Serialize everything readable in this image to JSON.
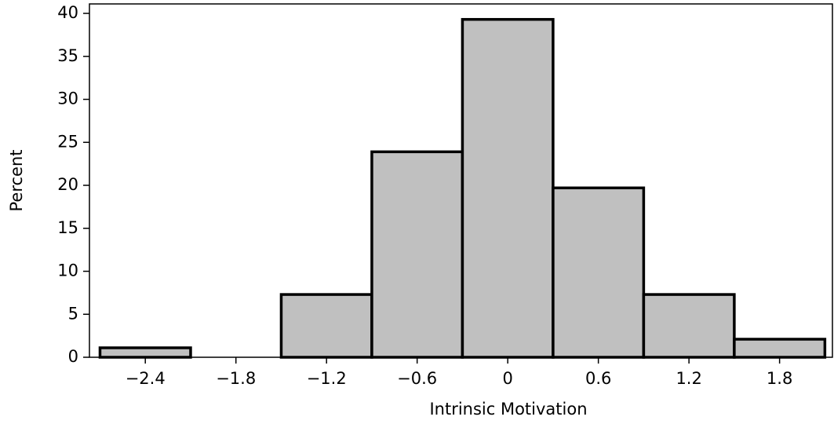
{
  "chart_data": {
    "type": "histogram",
    "x_label": "Intrinsic Motivation",
    "y_label": "Percent",
    "bins": [
      -2.7,
      -2.1,
      -1.5,
      -0.9,
      -0.3,
      0.3,
      0.9,
      1.5,
      2.1
    ],
    "values": [
      1.1,
      0,
      7.3,
      23.9,
      39.3,
      19.7,
      7.3,
      2.1
    ],
    "color": "#c0c0c0",
    "xlim": [
      -2.77,
      2.15
    ],
    "xticks": [
      {
        "value": -2.4,
        "label": "−2.4"
      },
      {
        "value": -1.8,
        "label": "−1.8"
      },
      {
        "value": -1.2,
        "label": "−1.2"
      },
      {
        "value": -0.6,
        "label": "−0.6"
      },
      0,
      0.6,
      1.2,
      1.8
    ],
    "ylim": [
      0,
      41.1
    ],
    "yticks": [
      0,
      5,
      10,
      15,
      20,
      25,
      30,
      35,
      40
    ]
  }
}
